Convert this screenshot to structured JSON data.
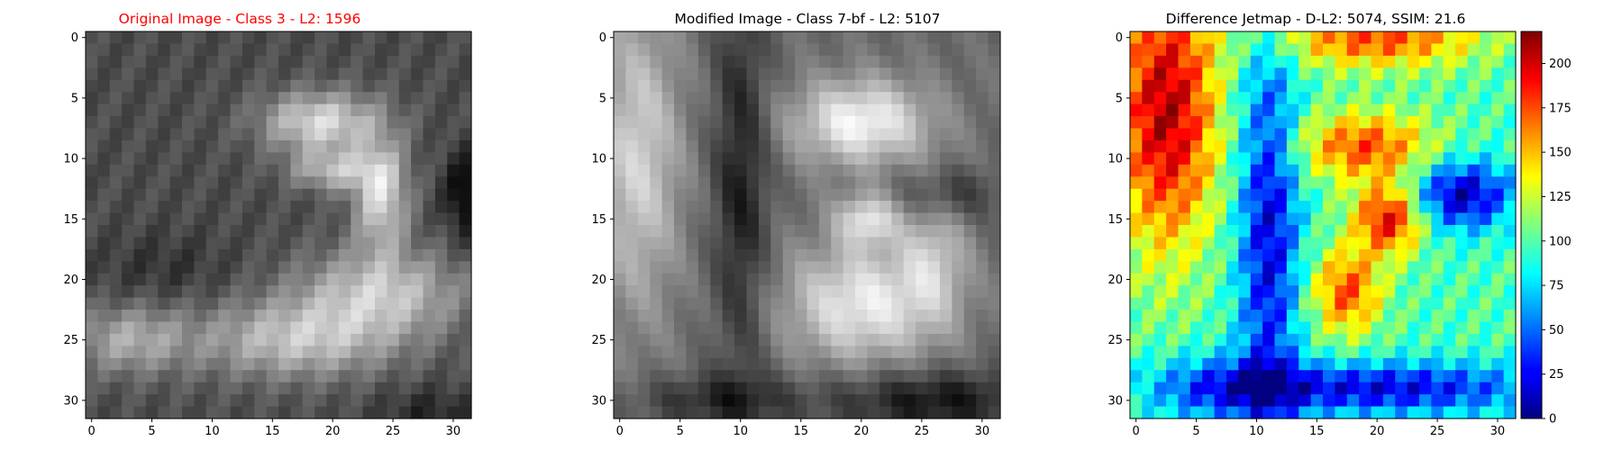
{
  "chart_data": [
    {
      "type": "heatmap",
      "title": "Original Image - Class 3 - L2: 1596",
      "title_color": "#ff0000",
      "colormap": "gray",
      "grid": false,
      "xlim": [
        -0.5,
        31.5
      ],
      "ylim": [
        31.5,
        -0.5
      ],
      "xticks": [
        "0",
        "5",
        "10",
        "15",
        "20",
        "25",
        "30"
      ],
      "yticks": [
        "0",
        "5",
        "10",
        "15",
        "20",
        "25",
        "30"
      ],
      "shape": [
        32,
        32
      ]
    },
    {
      "type": "heatmap",
      "title": "Modified Image - Class 7-bf - L2: 5107",
      "title_color": "#000000",
      "colormap": "gray",
      "grid": false,
      "xlim": [
        -0.5,
        31.5
      ],
      "ylim": [
        31.5,
        -0.5
      ],
      "xticks": [
        "0",
        "5",
        "10",
        "15",
        "20",
        "25",
        "30"
      ],
      "yticks": [
        "0",
        "5",
        "10",
        "15",
        "20",
        "25",
        "30"
      ],
      "shape": [
        32,
        32
      ]
    },
    {
      "type": "heatmap",
      "title": "Difference Jetmap - D-L2: 5074, SSIM: 21.6",
      "title_color": "#000000",
      "colormap": "jet",
      "grid": false,
      "xlim": [
        -0.5,
        31.5
      ],
      "ylim": [
        31.5,
        -0.5
      ],
      "xticks": [
        "0",
        "5",
        "10",
        "15",
        "20",
        "25",
        "30"
      ],
      "yticks": [
        "0",
        "5",
        "10",
        "15",
        "20",
        "25",
        "30"
      ],
      "colorbar": {
        "range": [
          0,
          218
        ],
        "ticks": [
          "0",
          "25",
          "50",
          "75",
          "100",
          "125",
          "150",
          "175",
          "200"
        ]
      },
      "shape": [
        32,
        32
      ]
    }
  ]
}
